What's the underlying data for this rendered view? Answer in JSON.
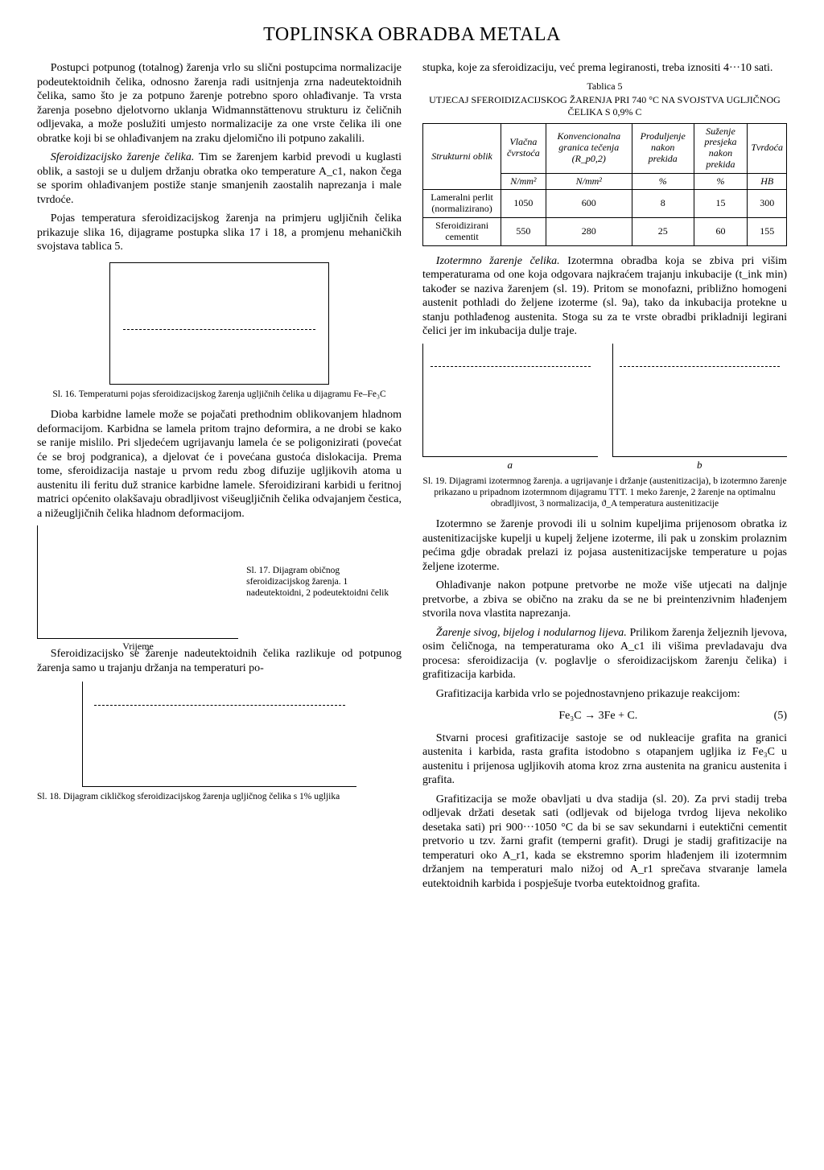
{
  "title": "TOPLINSKA OBRADBA METALA",
  "left": {
    "p1": "Postupci potpunog (totalnog) žarenja vrlo su slični postupcima normalizacije podeutektoidnih čelika, odnosno žarenja radi usitnjenja zrna nadeutektoidnih čelika, samo što je za potpuno žarenje potrebno sporo ohlađivanje. Ta vrsta žarenja posebno djelotvorno uklanja Widmannstättenovu strukturu iz čeličnih odljevaka, a može poslužiti umjesto normalizacije za one vrste čelika ili one obratke koji bi se ohlađivanjem na zraku djelomično ili potpuno zakalili.",
    "p2_lead": "Sferoidizacijsko žarenje čelika.",
    "p2": "Tim se žarenjem karbid prevodi u kuglasti oblik, a sastoji se u duljem držanju obratka oko temperature A_c1, nakon čega se sporim ohlađivanjem postiže stanje smanjenih zaostalih naprezanja i male tvrdoće.",
    "p3": "Pojas temperatura sferoidizacijskog žarenja na primjeru ugljičnih čelika prikazuje slika 16, dijagrame postupka slika 17 i 18, a promjenu mehaničkih svojstava tablica 5.",
    "cap16": "Sl. 16. Temperaturni pojas sferoidizacijskog žarenja ugljičnih čelika u dijagramu Fe–Fe₃C",
    "p4": "Dioba karbidne lamele može se pojačati prethodnim oblikovanjem hladnom deformacijom. Karbidna se lamela pritom trajno deformira, a ne drobi se kako se ranije mislilo. Pri sljedećem ugrijavanju lamela će se poligonizirati (povećat će se broj podgranica), a djelovat će i povećana gustoća dislokacija. Prema tome, sferoidizacija nastaje u prvom redu zbog difuzije ugljikovih atoma u austenitu ili feritu duž stranice karbidne lamele. Sferoidizirani karbidi u feritnoj matrici općenito olakšavaju obradljivost višeugljičnih čelika odvajanjem čestica, a nižeugljičnih čelika hladnom deformacijom.",
    "cap17": "Sl. 17. Dijagram običnog sferoidizacijskog žarenja. 1 nadeutektoidni, 2 podeutektoidni čelik",
    "axis17_xlabel": "Vrijeme",
    "p5": "Sferoidizacijsko se žarenje nadeutektoidnih čelika razlikuje od potpunog žarenja samo u trajanju držanja na temperaturi po-",
    "cap18": "Sl. 18. Dijagram cikličkog sferoidizacijskog žarenja ugljičnog čelika s 1% ugljika"
  },
  "right": {
    "p1": "stupka, koje za sferoidizaciju, već prema legiranosti, treba iznositi 4···10 sati.",
    "table5_label": "Tablica 5",
    "table5_title": "UTJECAJ SFEROIDIZACIJSKOG ŽARENJA PRI 740 °C NA SVOJSTVA UGLJIČNOG ČELIKA S 0,9% C",
    "table5": {
      "headers": {
        "c1": "Strukturni oblik",
        "c2a": "Vlačna čvrstoća",
        "c2b": "N/mm²",
        "c3a": "Konvencionalna granica tečenja (R_p0,2)",
        "c3b": "N/mm²",
        "c4a": "Produljenje nakon prekida",
        "c4b": "%",
        "c5a": "Suženje presjeka nakon prekida",
        "c5b": "%",
        "c6a": "Tvrdoća",
        "c6b": "HB"
      },
      "rows": [
        {
          "label": "Lameralni perlit (normalizirano)",
          "v": [
            "1050",
            "600",
            "8",
            "15",
            "300"
          ]
        },
        {
          "label": "Sferoidizirani cementit",
          "v": [
            "550",
            "280",
            "25",
            "60",
            "155"
          ]
        }
      ]
    },
    "p2_lead": "Izotermno žarenje čelika.",
    "p2": "Izotermna obradba koja se zbiva pri višim temperaturama od one koja odgovara najkraćem trajanju inkubacije (t_ink min) također se naziva žarenjem (sl. 19). Pritom se monofazni, približno homogeni austenit pothladi do željene izoterme (sl. 9a), tako da inkubacija protekne u stanju pothlađenog austenita. Stoga su za te vrste obradbi prikladniji legirani čelici jer im inkubacija dulje traje.",
    "fig19labels": {
      "a": "a",
      "b": "b"
    },
    "cap19": "Sl. 19. Dijagrami izotermnog žarenja. a ugrijavanje i držanje (austenitizacija), b izotermno žarenje prikazano u pripadnom izotermnom dijagramu TTT. 1 meko žarenje, 2 žarenje na optimalnu obradljivost, 3 normalizacija, ϑ_A temperatura austenitizacije",
    "p3": "Izotermno se žarenje provodi ili u solnim kupeljima prijenosom obratka iz austenitizacijske kupelji u kupelj željene izoterme, ili pak u zonskim prolaznim pećima gdje obradak prelazi iz pojasa austenitizacijske temperature u pojas željene izoterme.",
    "p4": "Ohlađivanje nakon potpune pretvorbe ne može više utjecati na daljnje pretvorbe, a zbiva se obično na zraku da se ne bi preintenzivnim hlađenjem stvorila nova vlastita naprezanja.",
    "p5_lead": "Žarenje sivog, bijelog i nodularnog lijeva.",
    "p5": "Prilikom žarenja željeznih ljevova, osim čeličnoga, na temperaturama oko A_c1 ili višima prevladavaju dva procesa: sferoidizacija (v. poglavlje o sferoidizacijskom žarenju čelika) i grafitizacija karbida.",
    "p6": "Grafitizacija karbida vrlo se pojednostavnjeno prikazuje reakcijom:",
    "eq": "Fe₃C → 3Fe + C.",
    "eqnum": "(5)",
    "p7": "Stvarni procesi grafitizacije sastoje se od nukleacije grafita na granici austenita i karbida, rasta grafita istodobno s otapanjem ugljika iz Fe₃C u austenitu i prijenosa ugljikovih atoma kroz zrna austenita na granicu austenita i grafita.",
    "p8": "Grafitizacija se može obavljati u dva stadija (sl. 20). Za prvi stadij treba odljevak držati desetak sati (odljevak od bijeloga tvrdog lijeva nekoliko desetaka sati) pri 900···1050 °C da bi se sav sekundarni i eutektični cementit pretvorio u tzv. žarni grafit (temperni grafit). Drugi je stadij grafitizacije na temperaturi oko A_r1, kada se ekstremno sporim hlađenjem ili izotermnim držanjem na temperaturi malo nižoj od A_r1 sprečava stvaranje lamela eutektoidnih karbida i pospješuje tvorba eutektoidnog grafita."
  },
  "colors": {
    "text": "#000000",
    "bg": "#ffffff",
    "rule": "#000000"
  }
}
